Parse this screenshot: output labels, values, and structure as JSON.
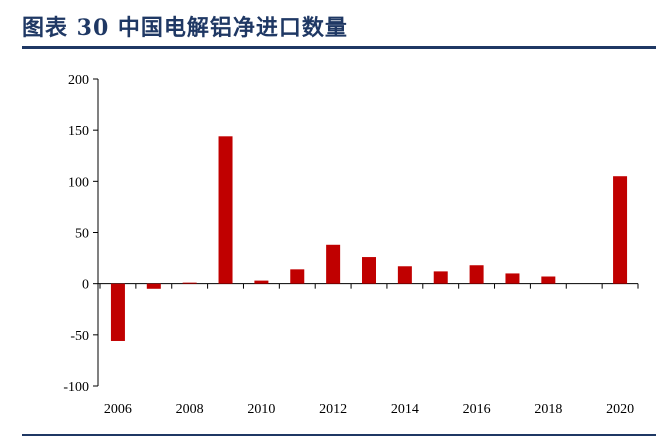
{
  "header": {
    "title": "图表 30   中国电解铝净进口数量"
  },
  "colors": {
    "bar": "#c00000",
    "title": "#1f3864",
    "axis": "#000000"
  },
  "chart_data": {
    "type": "bar",
    "title": "中国电解铝净进口数量",
    "xlabel": "",
    "ylabel": "",
    "ylim": [
      -100,
      200
    ],
    "yticks": [
      -100,
      -50,
      0,
      50,
      100,
      150,
      200
    ],
    "categories": [
      "2006",
      "2007",
      "2008",
      "2009",
      "2010",
      "2011",
      "2012",
      "2013",
      "2014",
      "2015",
      "2016",
      "2017",
      "2018",
      "2019",
      "2020"
    ],
    "values": [
      -56,
      -5,
      1,
      144,
      3,
      14,
      38,
      26,
      17,
      12,
      18,
      10,
      7,
      0,
      105
    ],
    "x_tick_labels": [
      "2006",
      "2008",
      "2010",
      "2012",
      "2014",
      "2016",
      "2018",
      "2020"
    ],
    "grid": false,
    "legend": "none"
  }
}
